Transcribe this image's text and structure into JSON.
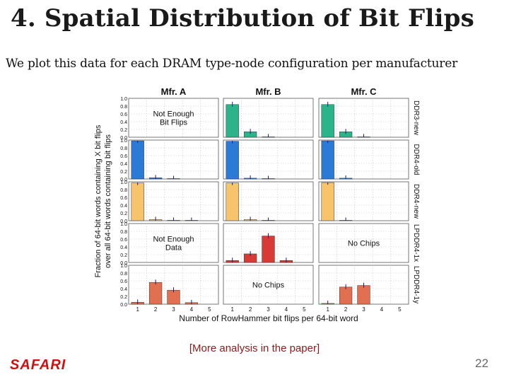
{
  "slide": {
    "title": "4. Spatial Distribution of Bit Flips",
    "subtitle": "We plot this data for each DRAM type-node configuration per manufacturer",
    "footer_note": "[More analysis in the paper]",
    "logo": "SAFARI",
    "page_number": "22"
  },
  "colors": {
    "DDR3-new": "#2bb48a",
    "DDR4-old": "#2b7bd6",
    "DDR4-new": "#f7c36b",
    "LPDDR4-1x": "#d83a36",
    "LPDDR4-1y": "#e0704f",
    "logo": "#d01010",
    "note": "#8b1a1a"
  },
  "chart_data": {
    "type": "bar",
    "xlabel": "Number of RowHammer bit flips per 64-bit word",
    "ylabel": "Fraction of 64-bit words containing X bit flips over all 64-bit words containing bit flips",
    "x": [
      "1",
      "2",
      "3",
      "4",
      "5"
    ],
    "ylim": [
      0,
      1
    ],
    "yticks": [
      "1.0",
      "0.8",
      "0.6",
      "0.4",
      "0.2",
      "0.0"
    ],
    "ytick_values": [
      1.0,
      0.8,
      0.6,
      0.4,
      0.2,
      0.0
    ],
    "grid": true,
    "columns": [
      "Mfr. A",
      "Mfr. B",
      "Mfr. C"
    ],
    "rows": [
      {
        "name": "DDR3-new",
        "color_key": "DDR3-new",
        "cells": [
          {
            "note": "Not Enough Bit Flips",
            "values": []
          },
          {
            "note": "",
            "values": [
              0.84,
              0.14,
              0.01,
              0,
              0
            ]
          },
          {
            "note": "",
            "values": [
              0.84,
              0.14,
              0.01,
              0,
              0
            ]
          }
        ]
      },
      {
        "name": "DDR4-old",
        "color_key": "DDR4-old",
        "cells": [
          {
            "note": "",
            "values": [
              0.98,
              0.03,
              0.01,
              0,
              0
            ]
          },
          {
            "note": "",
            "values": [
              0.97,
              0.02,
              0.01,
              0,
              0
            ]
          },
          {
            "note": "",
            "values": [
              0.98,
              0.02,
              0,
              0,
              0
            ]
          }
        ]
      },
      {
        "name": "DDR4-new",
        "color_key": "DDR4-new",
        "cells": [
          {
            "note": "",
            "values": [
              0.97,
              0.03,
              0.01,
              0.01,
              0
            ]
          },
          {
            "note": "",
            "values": [
              0.97,
              0.03,
              0.01,
              0,
              0
            ]
          },
          {
            "note": "",
            "values": [
              0.98,
              0.01,
              0,
              0,
              0
            ]
          }
        ]
      },
      {
        "name": "LPDDR4-1x",
        "color_key": "LPDDR4-1x",
        "cells": [
          {
            "note": "Not Enough Data",
            "values": []
          },
          {
            "note": "",
            "values": [
              0.05,
              0.22,
              0.68,
              0.05,
              0
            ]
          },
          {
            "note": "No Chips",
            "values": []
          }
        ]
      },
      {
        "name": "LPDDR4-1y",
        "color_key": "LPDDR4-1y",
        "cells": [
          {
            "note": "",
            "values": [
              0.05,
              0.56,
              0.36,
              0.04,
              0
            ]
          },
          {
            "note": "No Chips",
            "values": []
          },
          {
            "note": "",
            "values": [
              0.02,
              0.44,
              0.48,
              0,
              0
            ]
          }
        ]
      }
    ]
  }
}
